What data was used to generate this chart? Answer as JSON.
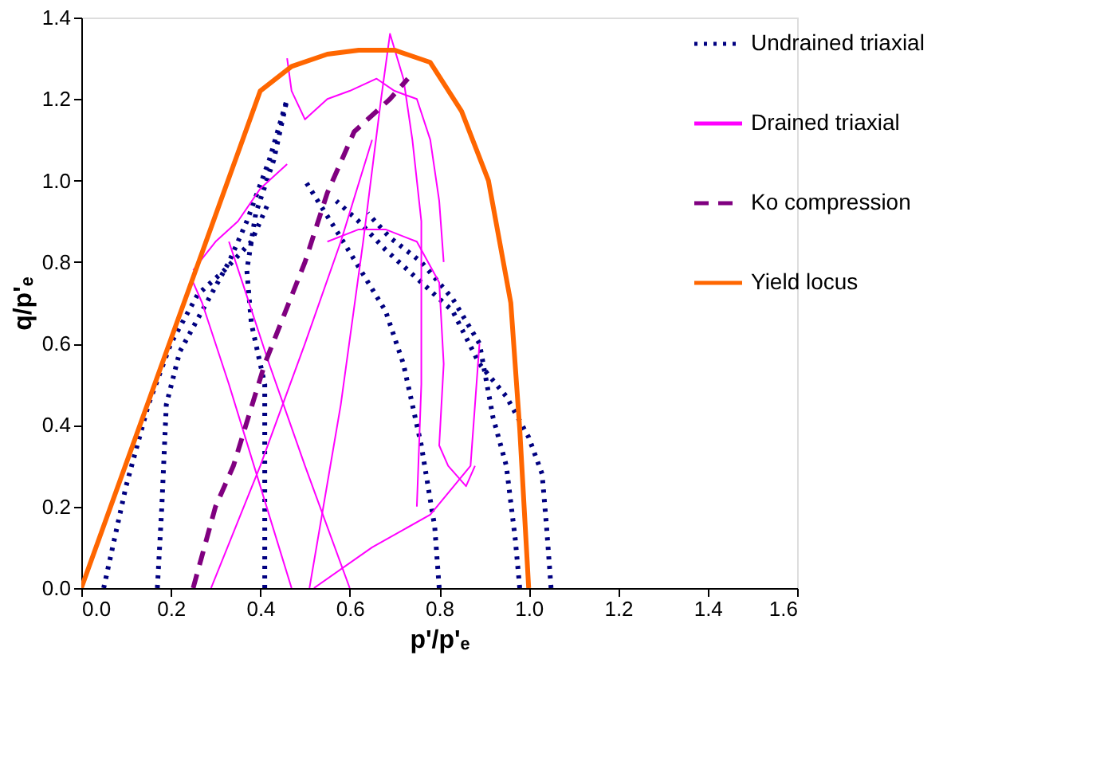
{
  "chart_data": {
    "type": "line",
    "xlabel": "p'/p'ₑ",
    "ylabel": "q/p'ₑ",
    "xlim": [
      0,
      1.6
    ],
    "ylim": [
      0,
      1.4
    ],
    "xticks": [
      {
        "value": 0,
        "label": "0.0"
      },
      0.2,
      0.4,
      0.6,
      0.8,
      {
        "value": 1,
        "label": "1.0"
      },
      1.2,
      1.4,
      1.6
    ],
    "yticks": [
      {
        "value": 0,
        "label": "0.0"
      },
      0.2,
      0.4,
      0.6,
      0.8,
      {
        "value": 1,
        "label": "1.0"
      },
      1.2,
      1.4
    ],
    "grid": false,
    "legend": "top right",
    "marker": "none",
    "series": [
      {
        "name": "Undrained triaxial",
        "color": "#000080",
        "line_style": "dotted",
        "x": [
          0.05,
          0.1,
          0.15,
          0.2,
          0.26,
          0.32,
          0.38,
          0.42
        ],
        "values": [
          0,
          0.25,
          0.45,
          0.6,
          0.72,
          0.78,
          0.85,
          0.95
        ]
      },
      {
        "color": "#000080",
        "line_style": "dotted",
        "x": [
          0.17,
          0.18,
          0.19,
          0.22,
          0.28,
          0.33,
          0.37,
          0.42,
          0.46
        ],
        "values": [
          0,
          0.2,
          0.45,
          0.58,
          0.7,
          0.8,
          0.9,
          1.05,
          1.2
        ]
      },
      {
        "color": "#000080",
        "line_style": "dotted",
        "x": [
          0.41,
          0.41,
          0.41,
          0.38,
          0.37,
          0.39,
          0.43,
          0.46
        ],
        "values": [
          0,
          0.25,
          0.5,
          0.65,
          0.78,
          0.92,
          1.05,
          1.2
        ]
      },
      {
        "color": "#000080",
        "line_style": "dotted",
        "x": [
          0.8,
          0.79,
          0.76,
          0.72,
          0.68,
          0.63,
          0.58,
          0.54,
          0.5
        ],
        "values": [
          0,
          0.15,
          0.35,
          0.55,
          0.68,
          0.77,
          0.86,
          0.93,
          1.0
        ]
      },
      {
        "color": "#000080",
        "line_style": "dotted",
        "x": [
          1.05,
          1.04,
          1.03,
          1.0,
          0.95,
          0.89,
          0.83,
          0.75,
          0.68,
          0.62,
          0.57
        ],
        "values": [
          0,
          0.15,
          0.28,
          0.37,
          0.47,
          0.55,
          0.68,
          0.76,
          0.83,
          0.9,
          0.95
        ]
      },
      {
        "color": "#000080",
        "line_style": "dotted",
        "x": [
          0.98,
          0.97,
          0.95,
          0.92,
          0.89,
          0.83,
          0.76,
          0.69,
          0.64
        ],
        "values": [
          0,
          0.12,
          0.3,
          0.42,
          0.6,
          0.71,
          0.8,
          0.86,
          0.92
        ]
      },
      {
        "name": "Drained triaxial",
        "color": "#ff00ff",
        "line_style": "solid",
        "x": [
          0.29,
          0.4,
          0.5,
          0.58,
          0.65
        ],
        "values": [
          0,
          0.3,
          0.6,
          0.85,
          1.1
        ]
      },
      {
        "color": "#ff00ff",
        "line_style": "solid",
        "x": [
          0.47,
          0.4,
          0.33,
          0.27,
          0.25
        ],
        "values": [
          0,
          0.25,
          0.5,
          0.7,
          0.75
        ]
      },
      {
        "color": "#ff00ff",
        "line_style": "solid",
        "x": [
          0.6,
          0.5,
          0.42,
          0.36,
          0.33
        ],
        "values": [
          0,
          0.3,
          0.55,
          0.75,
          0.85
        ]
      },
      {
        "color": "#ff00ff",
        "line_style": "solid",
        "x": [
          0.51,
          0.58,
          0.63,
          0.67,
          0.69,
          0.72,
          0.74,
          0.76,
          0.76,
          0.75
        ],
        "values": [
          0,
          0.45,
          0.85,
          1.2,
          1.36,
          1.25,
          1.1,
          0.9,
          0.5,
          0.2
        ]
      },
      {
        "color": "#ff00ff",
        "line_style": "solid",
        "x": [
          0.52,
          0.65,
          0.78,
          0.87,
          0.88,
          0.89
        ],
        "values": [
          0,
          0.1,
          0.18,
          0.3,
          0.45,
          0.6
        ]
      },
      {
        "color": "#ff00ff",
        "line_style": "solid",
        "x": [
          0.55,
          0.62,
          0.68,
          0.75,
          0.8,
          0.81,
          0.8,
          0.82,
          0.86,
          0.88
        ],
        "values": [
          0.85,
          0.88,
          0.88,
          0.85,
          0.75,
          0.55,
          0.35,
          0.3,
          0.25,
          0.3
        ]
      },
      {
        "color": "#ff00ff",
        "line_style": "solid",
        "x": [
          0.25,
          0.3,
          0.35,
          0.4,
          0.46
        ],
        "values": [
          0.78,
          0.85,
          0.9,
          0.98,
          1.04
        ]
      },
      {
        "color": "#ff00ff",
        "line_style": "solid",
        "x": [
          0.46,
          0.47,
          0.5,
          0.55,
          0.6,
          0.66,
          0.7,
          0.75,
          0.78,
          0.8,
          0.81
        ],
        "values": [
          1.3,
          1.22,
          1.15,
          1.2,
          1.22,
          1.25,
          1.22,
          1.2,
          1.1,
          0.95,
          0.8
        ]
      },
      {
        "name": "Ko compression",
        "color": "#800080",
        "line_style": "dashed",
        "x": [
          0.25,
          0.3,
          0.34,
          0.41,
          0.5,
          0.55,
          0.61,
          0.69,
          0.73
        ],
        "values": [
          0,
          0.2,
          0.3,
          0.55,
          0.8,
          0.97,
          1.12,
          1.2,
          1.25
        ]
      },
      {
        "name": "Yield locus",
        "color": "#ff6600",
        "line_style": "solid",
        "x": [
          0,
          0.4,
          0.47,
          0.55,
          0.62,
          0.7,
          0.78,
          0.85,
          0.91,
          0.96,
          0.98,
          1.0
        ],
        "values": [
          0,
          1.22,
          1.28,
          1.31,
          1.32,
          1.32,
          1.29,
          1.17,
          1.0,
          0.7,
          0.39,
          0
        ]
      }
    ]
  }
}
